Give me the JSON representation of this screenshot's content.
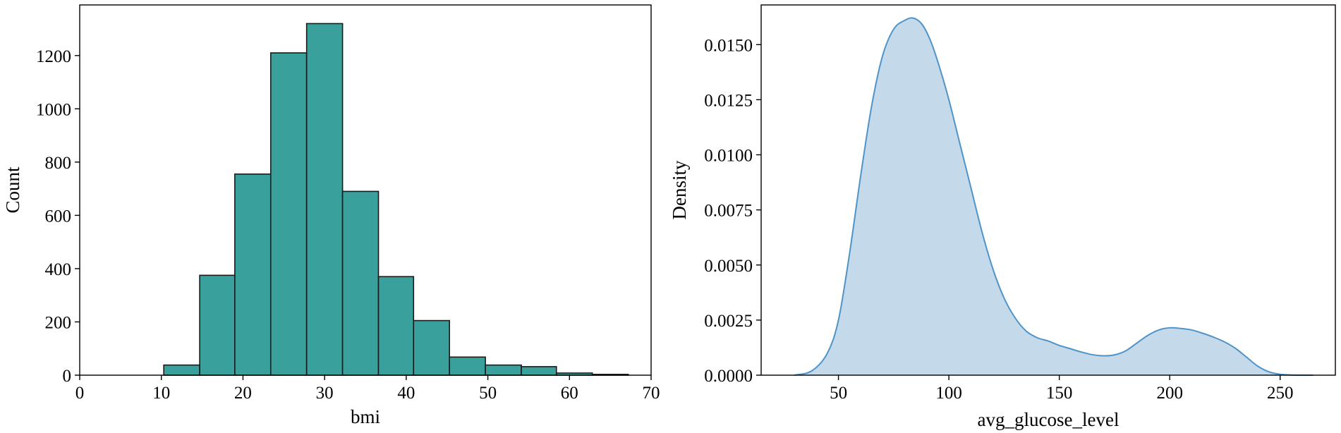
{
  "chart_data": [
    {
      "type": "bar",
      "subtype": "histogram",
      "xlabel": "bmi",
      "ylabel": "Count",
      "xlim": [
        0,
        70
      ],
      "ylim": [
        0,
        1390
      ],
      "xticks": [
        0,
        10,
        20,
        30,
        40,
        50,
        60,
        70
      ],
      "yticks": [
        0,
        200,
        400,
        600,
        800,
        1000,
        1200
      ],
      "grid": false,
      "bar_color": "#3aa09c",
      "edge_color": "#1a1a1a",
      "bins": [
        {
          "start": 10.3,
          "end": 14.7,
          "count": 38
        },
        {
          "start": 14.7,
          "end": 19.0,
          "count": 375
        },
        {
          "start": 19.0,
          "end": 23.4,
          "count": 755
        },
        {
          "start": 23.4,
          "end": 27.8,
          "count": 1210
        },
        {
          "start": 27.8,
          "end": 32.2,
          "count": 1320
        },
        {
          "start": 32.2,
          "end": 36.6,
          "count": 690
        },
        {
          "start": 36.6,
          "end": 40.9,
          "count": 370
        },
        {
          "start": 40.9,
          "end": 45.3,
          "count": 205
        },
        {
          "start": 45.3,
          "end": 49.7,
          "count": 68
        },
        {
          "start": 49.7,
          "end": 54.1,
          "count": 38
        },
        {
          "start": 54.1,
          "end": 58.4,
          "count": 32
        },
        {
          "start": 58.4,
          "end": 62.8,
          "count": 8
        },
        {
          "start": 62.8,
          "end": 67.2,
          "count": 3
        }
      ]
    },
    {
      "type": "area",
      "subtype": "kde",
      "xlabel": "avg_glucose_level",
      "ylabel": "Density",
      "xlim": [
        15,
        275
      ],
      "ylim": [
        0,
        0.0168
      ],
      "xticks": [
        50,
        100,
        150,
        200,
        250
      ],
      "yticks": [
        "0.0000",
        "0.0025",
        "0.0050",
        "0.0075",
        "0.0100",
        "0.0125",
        "0.0150"
      ],
      "grid": false,
      "line_color": "#4f94c8",
      "fill_color": "#c4d9ea",
      "x": [
        30,
        38,
        45,
        50,
        55,
        60,
        65,
        70,
        75,
        80,
        84,
        88,
        92,
        96,
        100,
        105,
        110,
        115,
        120,
        125,
        130,
        135,
        140,
        145,
        150,
        155,
        160,
        165,
        170,
        175,
        180,
        185,
        190,
        195,
        200,
        205,
        210,
        215,
        220,
        225,
        230,
        235,
        240,
        245,
        250,
        255,
        260,
        265
      ],
      "y": [
        0.0,
        0.0002,
        0.001,
        0.0025,
        0.0055,
        0.009,
        0.0122,
        0.0145,
        0.0157,
        0.0161,
        0.0162,
        0.0159,
        0.0151,
        0.0139,
        0.0125,
        0.0105,
        0.0085,
        0.0065,
        0.0048,
        0.0035,
        0.0026,
        0.002,
        0.0017,
        0.00155,
        0.00135,
        0.0012,
        0.00105,
        0.00093,
        0.00088,
        0.00092,
        0.0011,
        0.00145,
        0.0018,
        0.00205,
        0.00215,
        0.00212,
        0.00205,
        0.0019,
        0.00172,
        0.0015,
        0.0012,
        0.0008,
        0.0004,
        0.00015,
        4e-05,
        1e-05,
        0.0,
        0.0
      ]
    }
  ]
}
